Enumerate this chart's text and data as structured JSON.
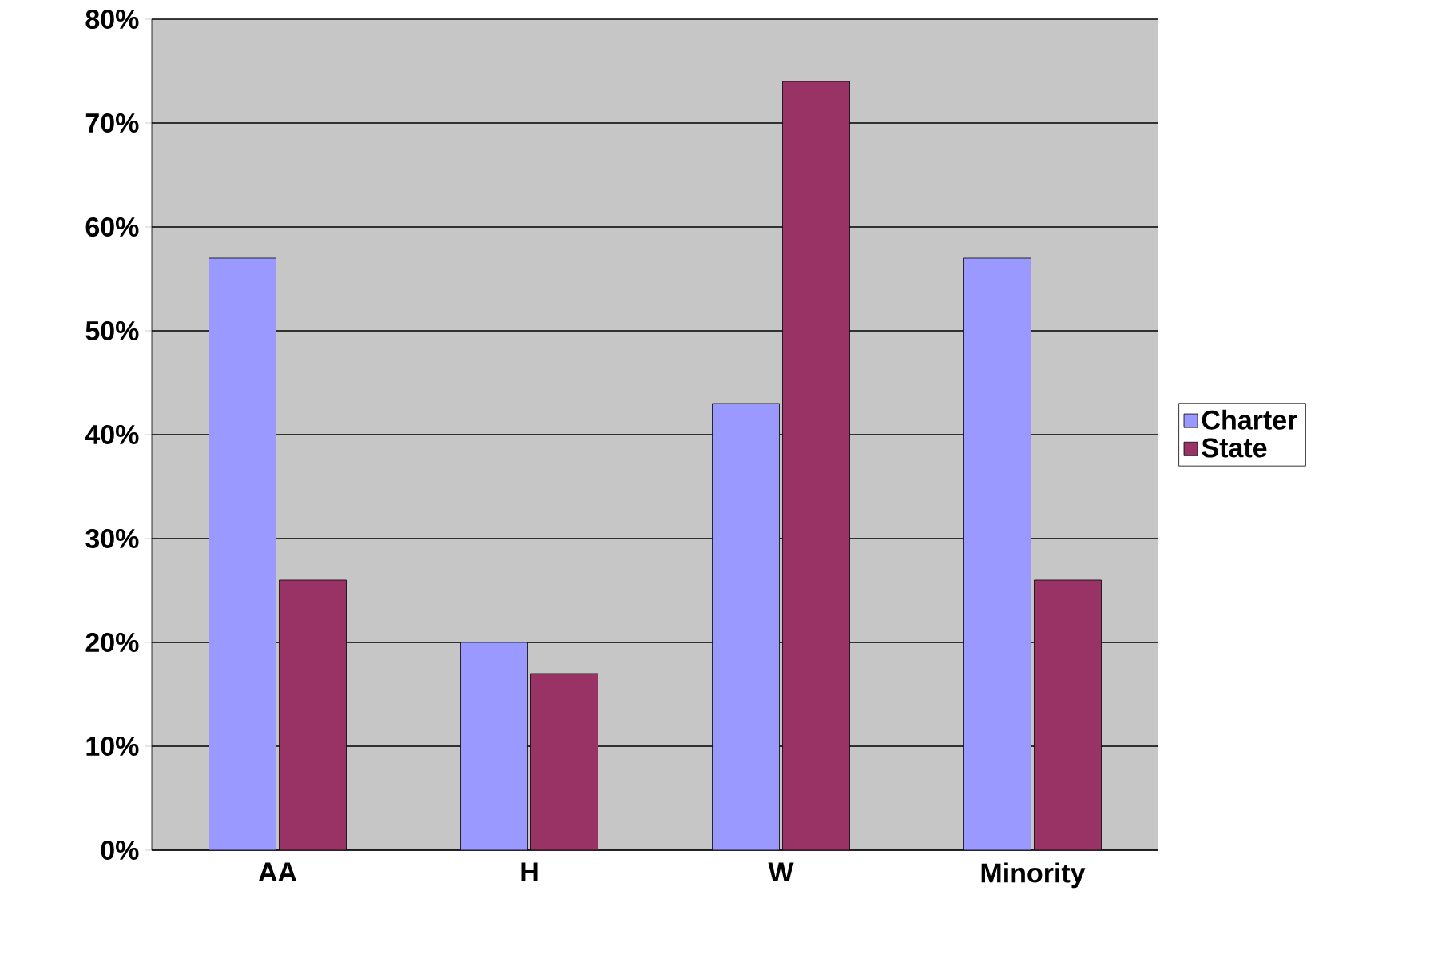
{
  "chart_data": {
    "type": "bar",
    "categories": [
      "AA",
      "H",
      "W",
      "Minority"
    ],
    "series": [
      {
        "name": "Charter",
        "color": "#9999ff",
        "values": [
          57,
          20,
          43,
          57
        ]
      },
      {
        "name": "State",
        "color": "#993366",
        "values": [
          26,
          17,
          74,
          26
        ]
      }
    ],
    "ylim": [
      0,
      80
    ],
    "yticks": [
      {
        "value": 0,
        "label": "0%"
      },
      {
        "value": 10,
        "label": "10%"
      },
      {
        "value": 20,
        "label": "20%"
      },
      {
        "value": 30,
        "label": "30%"
      },
      {
        "value": 40,
        "label": "40%"
      },
      {
        "value": 50,
        "label": "50%"
      },
      {
        "value": 60,
        "label": "60%"
      },
      {
        "value": 70,
        "label": "70%"
      },
      {
        "value": 80,
        "label": "80%"
      }
    ],
    "grid": "y",
    "legend": "right"
  }
}
